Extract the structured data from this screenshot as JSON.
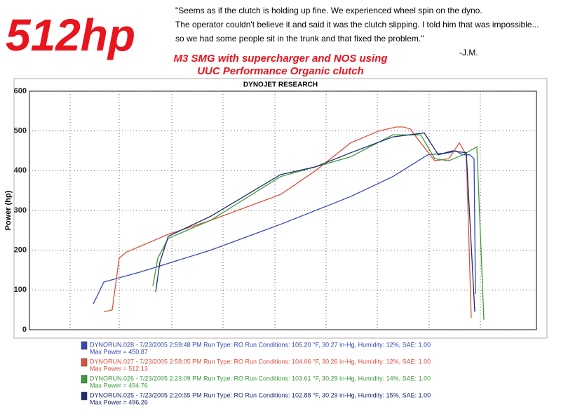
{
  "chart_data": {
    "type": "line",
    "headline": "512hp",
    "quote": [
      "\"Seems as if the clutch is holding up fine. We experienced wheel spin on the dyno.",
      "The operator couldn't believe it and said it was the clutch slipping. I told him that was impossible...",
      "so we had some people sit in the trunk and that fixed the problem.\""
    ],
    "quote_author": "-J.M.",
    "subtitle": [
      "M3 SMG with supercharger and NOS using",
      "UUC Performance Organic clutch"
    ],
    "title": "DYNOJET RESEARCH",
    "y_label": "Power (hp)",
    "xlim": [
      42,
      765
    ],
    "ylim": [
      0,
      600
    ],
    "yticks": [
      0,
      100,
      200,
      300,
      400,
      500,
      600
    ],
    "series": [
      {
        "name": "DYNORUN.028 - 7/23/2005 2:59:48 PM  Run Type: RO  Run Conditions: 105.20 °F, 30.27 in-Hg,  Humidity:  12%, SAE: 1.00",
        "max_power": "Max Power = 450.87",
        "color": "#3448b4",
        "x": [
          133,
          140,
          148,
          200,
          300,
          400,
          500,
          560,
          610,
          640,
          650,
          660,
          670,
          676,
          678
        ],
        "values": [
          65,
          90,
          120,
          145,
          200,
          265,
          335,
          385,
          440,
          445,
          450,
          440,
          440,
          430,
          90
        ]
      },
      {
        "name": "DYNORUN.027 - 7/23/2005 2:58:05 PM  Run Type: RO  Run Conditions: 104.06 °F, 30.26 in-Hg,  Humidity:  12%, SAE: 1.00",
        "max_power": "Max Power = 512.13",
        "color": "#e0503c",
        "x": [
          148,
          160,
          170,
          180,
          240,
          300,
          400,
          450,
          500,
          540,
          565,
          575,
          585,
          600,
          620,
          640,
          655,
          665,
          672
        ],
        "values": [
          45,
          50,
          180,
          195,
          240,
          275,
          340,
          400,
          470,
          500,
          510,
          510,
          505,
          470,
          425,
          430,
          470,
          440,
          30
        ]
      },
      {
        "name": "DYNORUN.026 - 7/23/2005 2:23:09 PM  Run Type: RO  Run Conditions: 103.61 °F, 30.29 in-Hg,  Humidity:  14%, SAE: 1.00",
        "max_power": "Max Power = 494.76",
        "color": "#3c9c3c",
        "x": [
          218,
          225,
          240,
          300,
          400,
          450,
          500,
          560,
          600,
          620,
          640,
          660,
          680,
          690
        ],
        "values": [
          110,
          180,
          230,
          275,
          385,
          410,
          435,
          490,
          490,
          430,
          425,
          440,
          460,
          25
        ]
      },
      {
        "name": "DYNORUN.025 - 7/23/2005 2:20:55 PM  Run Type: RO  Run Conditions: 102.88 °F, 30.29 in-Hg,  Humidity:  15%, SAE: 1.00",
        "max_power": "Max Power = 496.26",
        "color": "#1c2a70",
        "x": [
          222,
          228,
          240,
          300,
          400,
          450,
          500,
          560,
          605,
          625,
          645,
          665,
          677
        ],
        "values": [
          95,
          170,
          235,
          285,
          390,
          410,
          445,
          485,
          495,
          440,
          450,
          445,
          45
        ]
      }
    ]
  }
}
